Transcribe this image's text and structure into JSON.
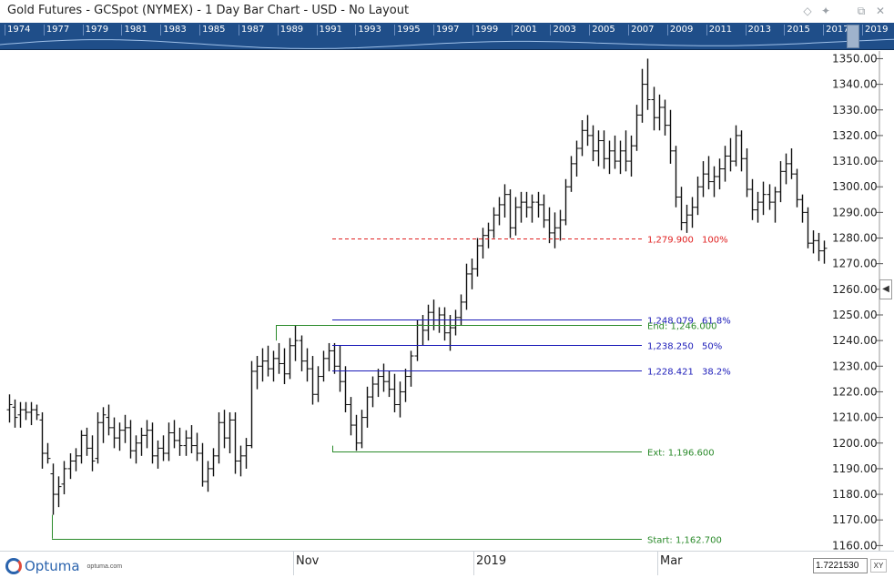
{
  "window": {
    "title": "Gold Futures - GCSpot (NYMEX) - 1 Day Bar Chart - USD - No Layout",
    "buttons": [
      {
        "name": "diamond-icon",
        "glyph": "◇"
      },
      {
        "name": "pin-icon",
        "glyph": "✦"
      },
      {
        "name": "restore-icon",
        "glyph": "⧉"
      },
      {
        "name": "close-icon",
        "glyph": "✕"
      }
    ]
  },
  "navigator": {
    "years": [
      "1974",
      "1977",
      "1979",
      "1981",
      "1983",
      "1985",
      "1987",
      "1989",
      "1991",
      "1993",
      "1995",
      "1997",
      "1999",
      "2001",
      "2003",
      "2005",
      "2007",
      "2009",
      "2011",
      "2013",
      "2015",
      "2017",
      "2019"
    ]
  },
  "chart_data": {
    "type": "ohlc",
    "title": "Gold Futures - GCSpot (NYMEX) - 1 Day Bar Chart - USD",
    "y_ticks": [
      "1160.00",
      "1170.00",
      "1180.00",
      "1190.00",
      "1200.00",
      "1210.00",
      "1220.00",
      "1230.00",
      "1240.00",
      "1250.00",
      "1260.00",
      "1270.00",
      "1280.00",
      "1290.00",
      "1300.00",
      "1310.00",
      "1320.00",
      "1330.00",
      "1340.00",
      "1350.00"
    ],
    "ylim": [
      1158,
      1353
    ],
    "x_labels": [
      "Nov",
      "2019",
      "Mar"
    ],
    "bars": [
      {
        "o": 1213,
        "h": 1219,
        "l": 1208,
        "c": 1215
      },
      {
        "o": 1214,
        "h": 1217,
        "l": 1206,
        "c": 1210
      },
      {
        "o": 1211,
        "h": 1216,
        "l": 1206,
        "c": 1213
      },
      {
        "o": 1213,
        "h": 1216,
        "l": 1209,
        "c": 1212
      },
      {
        "o": 1212,
        "h": 1216,
        "l": 1207,
        "c": 1213
      },
      {
        "o": 1213,
        "h": 1215,
        "l": 1209,
        "c": 1211
      },
      {
        "o": 1209,
        "h": 1212,
        "l": 1190,
        "c": 1196
      },
      {
        "o": 1196,
        "h": 1200,
        "l": 1192,
        "c": 1194
      },
      {
        "o": 1188,
        "h": 1192,
        "l": 1172,
        "c": 1180
      },
      {
        "o": 1180,
        "h": 1187,
        "l": 1175,
        "c": 1183
      },
      {
        "o": 1184,
        "h": 1193,
        "l": 1180,
        "c": 1190
      },
      {
        "o": 1190,
        "h": 1196,
        "l": 1186,
        "c": 1193
      },
      {
        "o": 1193,
        "h": 1198,
        "l": 1189,
        "c": 1195
      },
      {
        "o": 1195,
        "h": 1205,
        "l": 1192,
        "c": 1203
      },
      {
        "o": 1203,
        "h": 1206,
        "l": 1195,
        "c": 1198
      },
      {
        "o": 1198,
        "h": 1203,
        "l": 1189,
        "c": 1193
      },
      {
        "o": 1194,
        "h": 1212,
        "l": 1192,
        "c": 1208
      },
      {
        "o": 1208,
        "h": 1214,
        "l": 1200,
        "c": 1211
      },
      {
        "o": 1210,
        "h": 1215,
        "l": 1203,
        "c": 1206
      },
      {
        "o": 1206,
        "h": 1210,
        "l": 1198,
        "c": 1202
      },
      {
        "o": 1202,
        "h": 1208,
        "l": 1197,
        "c": 1205
      },
      {
        "o": 1205,
        "h": 1211,
        "l": 1200,
        "c": 1206
      },
      {
        "o": 1206,
        "h": 1209,
        "l": 1194,
        "c": 1197
      },
      {
        "o": 1197,
        "h": 1203,
        "l": 1192,
        "c": 1200
      },
      {
        "o": 1200,
        "h": 1206,
        "l": 1195,
        "c": 1203
      },
      {
        "o": 1203,
        "h": 1209,
        "l": 1198,
        "c": 1205
      },
      {
        "o": 1205,
        "h": 1208,
        "l": 1192,
        "c": 1195
      },
      {
        "o": 1195,
        "h": 1201,
        "l": 1190,
        "c": 1198
      },
      {
        "o": 1198,
        "h": 1203,
        "l": 1193,
        "c": 1196
      },
      {
        "o": 1196,
        "h": 1208,
        "l": 1193,
        "c": 1204
      },
      {
        "o": 1204,
        "h": 1209,
        "l": 1198,
        "c": 1201
      },
      {
        "o": 1201,
        "h": 1206,
        "l": 1195,
        "c": 1199
      },
      {
        "o": 1199,
        "h": 1205,
        "l": 1195,
        "c": 1202
      },
      {
        "o": 1202,
        "h": 1207,
        "l": 1196,
        "c": 1199
      },
      {
        "o": 1199,
        "h": 1204,
        "l": 1193,
        "c": 1196
      },
      {
        "o": 1196,
        "h": 1200,
        "l": 1183,
        "c": 1185
      },
      {
        "o": 1185,
        "h": 1193,
        "l": 1181,
        "c": 1190
      },
      {
        "o": 1190,
        "h": 1198,
        "l": 1187,
        "c": 1195
      },
      {
        "o": 1195,
        "h": 1212,
        "l": 1192,
        "c": 1208
      },
      {
        "o": 1208,
        "h": 1213,
        "l": 1198,
        "c": 1202
      },
      {
        "o": 1202,
        "h": 1212,
        "l": 1196,
        "c": 1209
      },
      {
        "o": 1209,
        "h": 1212,
        "l": 1188,
        "c": 1193
      },
      {
        "o": 1193,
        "h": 1199,
        "l": 1187,
        "c": 1195
      },
      {
        "o": 1195,
        "h": 1202,
        "l": 1190,
        "c": 1199
      },
      {
        "o": 1199,
        "h": 1232,
        "l": 1198,
        "c": 1228
      },
      {
        "o": 1228,
        "h": 1234,
        "l": 1221,
        "c": 1230
      },
      {
        "o": 1230,
        "h": 1237,
        "l": 1224,
        "c": 1232
      },
      {
        "o": 1232,
        "h": 1238,
        "l": 1226,
        "c": 1229
      },
      {
        "o": 1229,
        "h": 1236,
        "l": 1224,
        "c": 1233
      },
      {
        "o": 1233,
        "h": 1239,
        "l": 1227,
        "c": 1231
      },
      {
        "o": 1231,
        "h": 1237,
        "l": 1223,
        "c": 1227
      },
      {
        "o": 1227,
        "h": 1241,
        "l": 1225,
        "c": 1238
      },
      {
        "o": 1238,
        "h": 1246,
        "l": 1232,
        "c": 1240
      },
      {
        "o": 1240,
        "h": 1242,
        "l": 1228,
        "c": 1232
      },
      {
        "o": 1232,
        "h": 1237,
        "l": 1224,
        "c": 1229
      },
      {
        "o": 1229,
        "h": 1234,
        "l": 1215,
        "c": 1219
      },
      {
        "o": 1219,
        "h": 1230,
        "l": 1216,
        "c": 1226
      },
      {
        "o": 1226,
        "h": 1236,
        "l": 1224,
        "c": 1233
      },
      {
        "o": 1233,
        "h": 1239,
        "l": 1228,
        "c": 1236
      },
      {
        "o": 1236,
        "h": 1239,
        "l": 1227,
        "c": 1230
      },
      {
        "o": 1230,
        "h": 1238,
        "l": 1220,
        "c": 1224
      },
      {
        "o": 1224,
        "h": 1230,
        "l": 1212,
        "c": 1215
      },
      {
        "o": 1215,
        "h": 1218,
        "l": 1203,
        "c": 1207
      },
      {
        "o": 1207,
        "h": 1211,
        "l": 1197,
        "c": 1200
      },
      {
        "o": 1200,
        "h": 1213,
        "l": 1198,
        "c": 1210
      },
      {
        "o": 1210,
        "h": 1222,
        "l": 1206,
        "c": 1218
      },
      {
        "o": 1218,
        "h": 1226,
        "l": 1214,
        "c": 1223
      },
      {
        "o": 1223,
        "h": 1229,
        "l": 1218,
        "c": 1226
      },
      {
        "o": 1226,
        "h": 1231,
        "l": 1220,
        "c": 1224
      },
      {
        "o": 1224,
        "h": 1228,
        "l": 1218,
        "c": 1221
      },
      {
        "o": 1221,
        "h": 1227,
        "l": 1212,
        "c": 1215
      },
      {
        "o": 1215,
        "h": 1224,
        "l": 1210,
        "c": 1220
      },
      {
        "o": 1220,
        "h": 1229,
        "l": 1216,
        "c": 1226
      },
      {
        "o": 1226,
        "h": 1236,
        "l": 1222,
        "c": 1234
      },
      {
        "o": 1234,
        "h": 1248,
        "l": 1232,
        "c": 1246
      },
      {
        "o": 1246,
        "h": 1250,
        "l": 1238,
        "c": 1244
      },
      {
        "o": 1244,
        "h": 1254,
        "l": 1240,
        "c": 1251
      },
      {
        "o": 1251,
        "h": 1256,
        "l": 1244,
        "c": 1248
      },
      {
        "o": 1248,
        "h": 1253,
        "l": 1243,
        "c": 1250
      },
      {
        "o": 1250,
        "h": 1253,
        "l": 1240,
        "c": 1243
      },
      {
        "o": 1243,
        "h": 1250,
        "l": 1236,
        "c": 1245
      },
      {
        "o": 1245,
        "h": 1252,
        "l": 1242,
        "c": 1249
      },
      {
        "o": 1249,
        "h": 1258,
        "l": 1246,
        "c": 1255
      },
      {
        "o": 1255,
        "h": 1270,
        "l": 1252,
        "c": 1266
      },
      {
        "o": 1266,
        "h": 1272,
        "l": 1260,
        "c": 1268
      },
      {
        "o": 1268,
        "h": 1280,
        "l": 1265,
        "c": 1277
      },
      {
        "o": 1277,
        "h": 1284,
        "l": 1272,
        "c": 1281
      },
      {
        "o": 1281,
        "h": 1286,
        "l": 1276,
        "c": 1283
      },
      {
        "o": 1283,
        "h": 1292,
        "l": 1280,
        "c": 1289
      },
      {
        "o": 1289,
        "h": 1296,
        "l": 1285,
        "c": 1293
      },
      {
        "o": 1293,
        "h": 1301,
        "l": 1288,
        "c": 1297
      },
      {
        "o": 1297,
        "h": 1299,
        "l": 1280,
        "c": 1284
      },
      {
        "o": 1284,
        "h": 1296,
        "l": 1281,
        "c": 1292
      },
      {
        "o": 1292,
        "h": 1298,
        "l": 1286,
        "c": 1294
      },
      {
        "o": 1294,
        "h": 1298,
        "l": 1288,
        "c": 1292
      },
      {
        "o": 1292,
        "h": 1297,
        "l": 1286,
        "c": 1294
      },
      {
        "o": 1294,
        "h": 1298,
        "l": 1288,
        "c": 1293
      },
      {
        "o": 1293,
        "h": 1297,
        "l": 1284,
        "c": 1287
      },
      {
        "o": 1287,
        "h": 1292,
        "l": 1278,
        "c": 1282
      },
      {
        "o": 1282,
        "h": 1290,
        "l": 1276,
        "c": 1284
      },
      {
        "o": 1284,
        "h": 1291,
        "l": 1279,
        "c": 1287
      },
      {
        "o": 1287,
        "h": 1303,
        "l": 1285,
        "c": 1300
      },
      {
        "o": 1300,
        "h": 1312,
        "l": 1298,
        "c": 1309
      },
      {
        "o": 1309,
        "h": 1318,
        "l": 1304,
        "c": 1315
      },
      {
        "o": 1315,
        "h": 1326,
        "l": 1312,
        "c": 1322
      },
      {
        "o": 1322,
        "h": 1328,
        "l": 1316,
        "c": 1320
      },
      {
        "o": 1320,
        "h": 1324,
        "l": 1310,
        "c": 1314
      },
      {
        "o": 1314,
        "h": 1322,
        "l": 1308,
        "c": 1318
      },
      {
        "o": 1318,
        "h": 1322,
        "l": 1307,
        "c": 1311
      },
      {
        "o": 1311,
        "h": 1318,
        "l": 1305,
        "c": 1314
      },
      {
        "o": 1314,
        "h": 1320,
        "l": 1307,
        "c": 1310
      },
      {
        "o": 1310,
        "h": 1318,
        "l": 1305,
        "c": 1314
      },
      {
        "o": 1314,
        "h": 1322,
        "l": 1306,
        "c": 1310
      },
      {
        "o": 1310,
        "h": 1320,
        "l": 1304,
        "c": 1316
      },
      {
        "o": 1316,
        "h": 1332,
        "l": 1314,
        "c": 1328
      },
      {
        "o": 1328,
        "h": 1346,
        "l": 1325,
        "c": 1340
      },
      {
        "o": 1340,
        "h": 1350,
        "l": 1330,
        "c": 1334
      },
      {
        "o": 1334,
        "h": 1339,
        "l": 1322,
        "c": 1327
      },
      {
        "o": 1327,
        "h": 1336,
        "l": 1322,
        "c": 1331
      },
      {
        "o": 1331,
        "h": 1334,
        "l": 1320,
        "c": 1324
      },
      {
        "o": 1324,
        "h": 1330,
        "l": 1309,
        "c": 1314
      },
      {
        "o": 1314,
        "h": 1316,
        "l": 1292,
        "c": 1296
      },
      {
        "o": 1296,
        "h": 1300,
        "l": 1283,
        "c": 1286
      },
      {
        "o": 1286,
        "h": 1293,
        "l": 1282,
        "c": 1289
      },
      {
        "o": 1289,
        "h": 1296,
        "l": 1284,
        "c": 1292
      },
      {
        "o": 1292,
        "h": 1304,
        "l": 1289,
        "c": 1300
      },
      {
        "o": 1300,
        "h": 1310,
        "l": 1296,
        "c": 1305
      },
      {
        "o": 1305,
        "h": 1312,
        "l": 1299,
        "c": 1302
      },
      {
        "o": 1302,
        "h": 1308,
        "l": 1296,
        "c": 1304
      },
      {
        "o": 1304,
        "h": 1311,
        "l": 1299,
        "c": 1307
      },
      {
        "o": 1307,
        "h": 1316,
        "l": 1302,
        "c": 1312
      },
      {
        "o": 1312,
        "h": 1319,
        "l": 1306,
        "c": 1310
      },
      {
        "o": 1310,
        "h": 1324,
        "l": 1308,
        "c": 1320
      },
      {
        "o": 1320,
        "h": 1322,
        "l": 1306,
        "c": 1311
      },
      {
        "o": 1311,
        "h": 1315,
        "l": 1296,
        "c": 1299
      },
      {
        "o": 1299,
        "h": 1303,
        "l": 1287,
        "c": 1291
      },
      {
        "o": 1291,
        "h": 1298,
        "l": 1286,
        "c": 1294
      },
      {
        "o": 1294,
        "h": 1302,
        "l": 1289,
        "c": 1297
      },
      {
        "o": 1297,
        "h": 1301,
        "l": 1291,
        "c": 1294
      },
      {
        "o": 1294,
        "h": 1300,
        "l": 1286,
        "c": 1298
      },
      {
        "o": 1298,
        "h": 1310,
        "l": 1294,
        "c": 1306
      },
      {
        "o": 1306,
        "h": 1313,
        "l": 1301,
        "c": 1309
      },
      {
        "o": 1309,
        "h": 1315,
        "l": 1303,
        "c": 1305
      },
      {
        "o": 1305,
        "h": 1307,
        "l": 1292,
        "c": 1295
      },
      {
        "o": 1295,
        "h": 1297,
        "l": 1286,
        "c": 1290
      },
      {
        "o": 1290,
        "h": 1292,
        "l": 1276,
        "c": 1278
      },
      {
        "o": 1278,
        "h": 1283,
        "l": 1274,
        "c": 1279
      },
      {
        "o": 1279,
        "h": 1282,
        "l": 1271,
        "c": 1275
      },
      {
        "o": 1275,
        "h": 1279,
        "l": 1270,
        "c": 1276
      }
    ],
    "bar_color": "#111111",
    "annotations": {
      "fib_levels": [
        {
          "value": 1279.9,
          "label": "1,279.900",
          "pct": "100%",
          "color": "#e02020",
          "style": "dashed"
        },
        {
          "value": 1248.079,
          "label": "1,248.079",
          "pct": "61.8%",
          "color": "#1a1ab8",
          "style": "solid"
        },
        {
          "value": 1238.25,
          "label": "1,238.250",
          "pct": "50%",
          "color": "#1a1ab8",
          "style": "solid"
        },
        {
          "value": 1228.421,
          "label": "1,228.421",
          "pct": "38.2%",
          "color": "#1a1ab8",
          "style": "solid"
        }
      ],
      "markers": [
        {
          "value": 1246.0,
          "label": "End: 1,246.000",
          "color": "#2a8a2a"
        },
        {
          "value": 1196.6,
          "label": "Ext: 1,196.600",
          "color": "#2a8a2a"
        },
        {
          "value": 1162.7,
          "label": "Start: 1,162.700",
          "color": "#2a8a2a"
        }
      ]
    }
  },
  "bottom": {
    "logo_text": "Optuma",
    "logo_url": "optuma.com",
    "value_box": "1.7221530",
    "xy_label": "XY",
    "side_arrow": "◀"
  }
}
